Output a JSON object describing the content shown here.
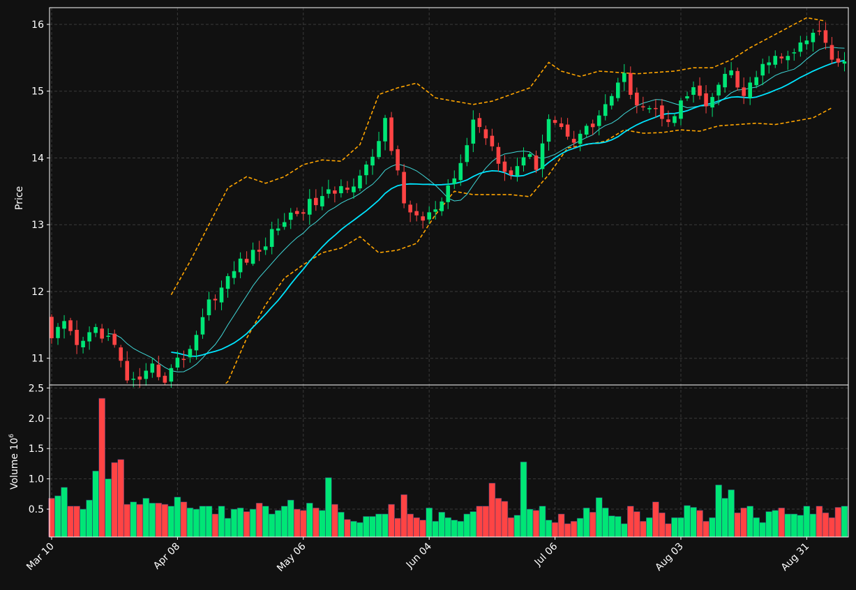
{
  "colors": {
    "background": "#111111",
    "up": "#00e676",
    "down": "#ff4444",
    "ma_short": "#40d8d8",
    "ma_long": "#00e5ff",
    "bollinger": "#ffa500",
    "grid": "#3a3a3a",
    "text": "#ffffff"
  },
  "chart_data": [
    {
      "type": "candlestick",
      "ylabel": "Price",
      "ylim": [
        10.6,
        16.25
      ],
      "yticks": [
        "11",
        "12",
        "13",
        "14",
        "15",
        "16"
      ],
      "grid": true,
      "overlays": [
        "short moving average",
        "long moving average",
        "upper band",
        "lower band"
      ],
      "x_ticks": [
        {
          "i": 0,
          "label": "Mar 10"
        },
        {
          "i": 20,
          "label": "Apr 08"
        },
        {
          "i": 40,
          "label": "May 06"
        },
        {
          "i": 60,
          "label": "Jun 04"
        },
        {
          "i": 80,
          "label": "Jul 06"
        },
        {
          "i": 100,
          "label": "Aug 03"
        },
        {
          "i": 120,
          "label": "Aug 31"
        }
      ],
      "close_anchors": [
        [
          0,
          11.3
        ],
        [
          2,
          11.5
        ],
        [
          4,
          11.15
        ],
        [
          7,
          11.45
        ],
        [
          9,
          11.3
        ],
        [
          10,
          11.15
        ],
        [
          12,
          10.7
        ],
        [
          14,
          10.6
        ],
        [
          16,
          10.85
        ],
        [
          18,
          10.7
        ],
        [
          20,
          10.95
        ],
        [
          22,
          11.15
        ],
        [
          25,
          11.85
        ],
        [
          27,
          12.05
        ],
        [
          30,
          12.45
        ],
        [
          33,
          12.6
        ],
        [
          36,
          13.0
        ],
        [
          39,
          13.2
        ],
        [
          42,
          13.35
        ],
        [
          45,
          13.5
        ],
        [
          48,
          13.65
        ],
        [
          51,
          13.95
        ],
        [
          53,
          14.6
        ],
        [
          56,
          13.3
        ],
        [
          59,
          13.05
        ],
        [
          62,
          13.3
        ],
        [
          65,
          13.9
        ],
        [
          67,
          14.55
        ],
        [
          69,
          14.35
        ],
        [
          71,
          14.0
        ],
        [
          73,
          13.75
        ],
        [
          75,
          14.05
        ],
        [
          77,
          13.9
        ],
        [
          79,
          14.6
        ],
        [
          81,
          14.45
        ],
        [
          83,
          14.3
        ],
        [
          86,
          14.5
        ],
        [
          88,
          14.8
        ],
        [
          91,
          15.2
        ],
        [
          93,
          14.85
        ],
        [
          96,
          14.7
        ],
        [
          98,
          14.6
        ],
        [
          100,
          14.8
        ],
        [
          102,
          15.05
        ],
        [
          104,
          14.7
        ],
        [
          106,
          15.1
        ],
        [
          108,
          15.3
        ],
        [
          110,
          14.9
        ],
        [
          112,
          15.2
        ],
        [
          114,
          15.5
        ],
        [
          116,
          15.45
        ],
        [
          118,
          15.6
        ],
        [
          120,
          15.75
        ],
        [
          122,
          15.9
        ],
        [
          124,
          15.5
        ]
      ],
      "bollinger_upper": [
        [
          19,
          11.95
        ],
        [
          22,
          12.45
        ],
        [
          25,
          13.0
        ],
        [
          28,
          13.55
        ],
        [
          31,
          13.72
        ],
        [
          34,
          13.62
        ],
        [
          37,
          13.72
        ],
        [
          40,
          13.9
        ],
        [
          43,
          13.97
        ],
        [
          46,
          13.95
        ],
        [
          49,
          14.2
        ],
        [
          52,
          14.95
        ],
        [
          55,
          15.05
        ],
        [
          58,
          15.12
        ],
        [
          61,
          14.9
        ],
        [
          64,
          14.85
        ],
        [
          67,
          14.8
        ],
        [
          70,
          14.85
        ],
        [
          73,
          14.95
        ],
        [
          76,
          15.05
        ],
        [
          79,
          15.43
        ],
        [
          81,
          15.3
        ],
        [
          84,
          15.22
        ],
        [
          87,
          15.3
        ],
        [
          90,
          15.28
        ],
        [
          93,
          15.26
        ],
        [
          96,
          15.28
        ],
        [
          99,
          15.3
        ],
        [
          102,
          15.35
        ],
        [
          105,
          15.35
        ],
        [
          108,
          15.47
        ],
        [
          111,
          15.65
        ],
        [
          114,
          15.8
        ],
        [
          117,
          15.95
        ],
        [
          120,
          16.1
        ],
        [
          123,
          16.05
        ]
      ],
      "bollinger_lower": [
        [
          19,
          10.5
        ],
        [
          22,
          10.4
        ],
        [
          25,
          10.4
        ],
        [
          28,
          10.65
        ],
        [
          31,
          11.3
        ],
        [
          34,
          11.8
        ],
        [
          37,
          12.2
        ],
        [
          40,
          12.4
        ],
        [
          43,
          12.58
        ],
        [
          46,
          12.65
        ],
        [
          49,
          12.82
        ],
        [
          52,
          12.58
        ],
        [
          55,
          12.62
        ],
        [
          58,
          12.72
        ],
        [
          61,
          13.15
        ],
        [
          64,
          13.5
        ],
        [
          67,
          13.45
        ],
        [
          70,
          13.45
        ],
        [
          73,
          13.45
        ],
        [
          76,
          13.42
        ],
        [
          79,
          13.75
        ],
        [
          82,
          14.15
        ],
        [
          85,
          14.2
        ],
        [
          88,
          14.25
        ],
        [
          91,
          14.42
        ],
        [
          94,
          14.37
        ],
        [
          97,
          14.38
        ],
        [
          100,
          14.42
        ],
        [
          103,
          14.4
        ],
        [
          106,
          14.48
        ],
        [
          109,
          14.5
        ],
        [
          112,
          14.52
        ],
        [
          115,
          14.5
        ],
        [
          118,
          14.55
        ],
        [
          121,
          14.6
        ],
        [
          124,
          14.75
        ]
      ],
      "ma_short_start": 9,
      "ma_long_start": 19
    },
    {
      "type": "bar",
      "ylabel": "Volume  10",
      "ylabel_exponent": "6",
      "ylim": [
        0.04,
        2.55
      ],
      "yticks": [
        "0.5",
        "1.0",
        "1.5",
        "2.0",
        "2.5"
      ],
      "grid": true,
      "volume_anchors": [
        [
          0,
          0.68
        ],
        [
          1,
          0.72
        ],
        [
          2,
          0.86
        ],
        [
          3,
          0.55
        ],
        [
          4,
          0.55
        ],
        [
          5,
          0.5
        ],
        [
          6,
          0.65
        ],
        [
          7,
          1.13
        ],
        [
          8,
          2.33
        ],
        [
          9,
          1.0
        ],
        [
          10,
          1.27
        ],
        [
          11,
          1.32
        ],
        [
          12,
          0.58
        ],
        [
          13,
          0.62
        ],
        [
          14,
          0.58
        ],
        [
          15,
          0.68
        ],
        [
          16,
          0.6
        ],
        [
          17,
          0.6
        ],
        [
          18,
          0.58
        ],
        [
          19,
          0.55
        ],
        [
          20,
          0.7
        ],
        [
          21,
          0.62
        ],
        [
          22,
          0.52
        ],
        [
          23,
          0.5
        ],
        [
          24,
          0.55
        ],
        [
          25,
          0.55
        ],
        [
          26,
          0.42
        ],
        [
          27,
          0.55
        ],
        [
          28,
          0.35
        ],
        [
          29,
          0.5
        ],
        [
          30,
          0.52
        ],
        [
          31,
          0.46
        ],
        [
          32,
          0.5
        ],
        [
          33,
          0.6
        ],
        [
          34,
          0.55
        ],
        [
          35,
          0.42
        ],
        [
          36,
          0.48
        ],
        [
          37,
          0.55
        ],
        [
          38,
          0.65
        ],
        [
          39,
          0.5
        ],
        [
          40,
          0.48
        ],
        [
          41,
          0.6
        ],
        [
          42,
          0.52
        ],
        [
          43,
          0.48
        ],
        [
          44,
          1.02
        ],
        [
          45,
          0.58
        ],
        [
          46,
          0.45
        ],
        [
          47,
          0.33
        ],
        [
          48,
          0.3
        ],
        [
          49,
          0.28
        ],
        [
          50,
          0.38
        ],
        [
          51,
          0.38
        ],
        [
          52,
          0.42
        ],
        [
          53,
          0.42
        ],
        [
          54,
          0.58
        ],
        [
          55,
          0.35
        ],
        [
          56,
          0.74
        ],
        [
          57,
          0.42
        ],
        [
          58,
          0.36
        ],
        [
          59,
          0.32
        ],
        [
          60,
          0.52
        ],
        [
          61,
          0.3
        ],
        [
          62,
          0.45
        ],
        [
          63,
          0.36
        ],
        [
          64,
          0.32
        ],
        [
          65,
          0.3
        ],
        [
          66,
          0.42
        ],
        [
          67,
          0.46
        ],
        [
          68,
          0.55
        ],
        [
          69,
          0.55
        ],
        [
          70,
          0.93
        ],
        [
          71,
          0.68
        ],
        [
          72,
          0.63
        ],
        [
          73,
          0.36
        ],
        [
          74,
          0.4
        ],
        [
          75,
          1.28
        ],
        [
          76,
          0.5
        ],
        [
          77,
          0.48
        ],
        [
          78,
          0.55
        ],
        [
          79,
          0.32
        ],
        [
          80,
          0.28
        ],
        [
          81,
          0.42
        ],
        [
          82,
          0.26
        ],
        [
          83,
          0.3
        ],
        [
          84,
          0.35
        ],
        [
          85,
          0.52
        ],
        [
          86,
          0.45
        ],
        [
          87,
          0.69
        ],
        [
          88,
          0.52
        ],
        [
          89,
          0.39
        ],
        [
          90,
          0.38
        ],
        [
          91,
          0.26
        ],
        [
          92,
          0.55
        ],
        [
          93,
          0.46
        ],
        [
          94,
          0.3
        ],
        [
          95,
          0.36
        ],
        [
          96,
          0.62
        ],
        [
          97,
          0.44
        ],
        [
          98,
          0.26
        ],
        [
          99,
          0.36
        ],
        [
          100,
          0.36
        ],
        [
          101,
          0.56
        ],
        [
          102,
          0.53
        ],
        [
          103,
          0.48
        ],
        [
          104,
          0.3
        ],
        [
          105,
          0.36
        ],
        [
          106,
          0.9
        ],
        [
          107,
          0.68
        ],
        [
          108,
          0.82
        ],
        [
          109,
          0.44
        ],
        [
          110,
          0.52
        ],
        [
          111,
          0.55
        ],
        [
          112,
          0.36
        ],
        [
          113,
          0.28
        ],
        [
          114,
          0.46
        ],
        [
          115,
          0.48
        ],
        [
          116,
          0.52
        ],
        [
          117,
          0.42
        ],
        [
          118,
          0.42
        ],
        [
          119,
          0.4
        ],
        [
          120,
          0.55
        ],
        [
          121,
          0.42
        ],
        [
          122,
          0.55
        ],
        [
          123,
          0.44
        ],
        [
          124,
          0.36
        ],
        [
          125,
          0.53
        ],
        [
          126,
          0.55
        ]
      ]
    }
  ]
}
